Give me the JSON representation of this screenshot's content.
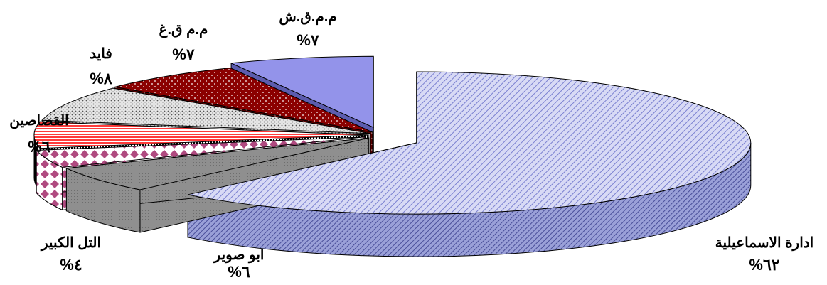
{
  "chart_data": {
    "type": "pie",
    "style": "3d-exploded",
    "title": "",
    "slices": [
      {
        "label": "ادارة الاسماعيلية",
        "value": 62,
        "value_text": "%٦٢",
        "color": "#b8bcee"
      },
      {
        "label": "ابو صوير",
        "value": 6,
        "value_text": "%٦",
        "color": "#8c8c8c"
      },
      {
        "label": "التل الكبير",
        "value": 4,
        "value_text": "%٤",
        "color": "#d8a0c8"
      },
      {
        "label": "القصاصين",
        "value": 6,
        "value_text": "%٦",
        "color": "#ff7070"
      },
      {
        "label": "فايد",
        "value": 8,
        "value_text": "%٨",
        "color": "#d8d8d8"
      },
      {
        "label": "م.م ق.غ",
        "value": 7,
        "value_text": "%٧",
        "color": "#8b0000"
      },
      {
        "label": "م.م.ق.ش",
        "value": 7,
        "value_text": "%٧",
        "color": "#9090e8"
      }
    ]
  }
}
